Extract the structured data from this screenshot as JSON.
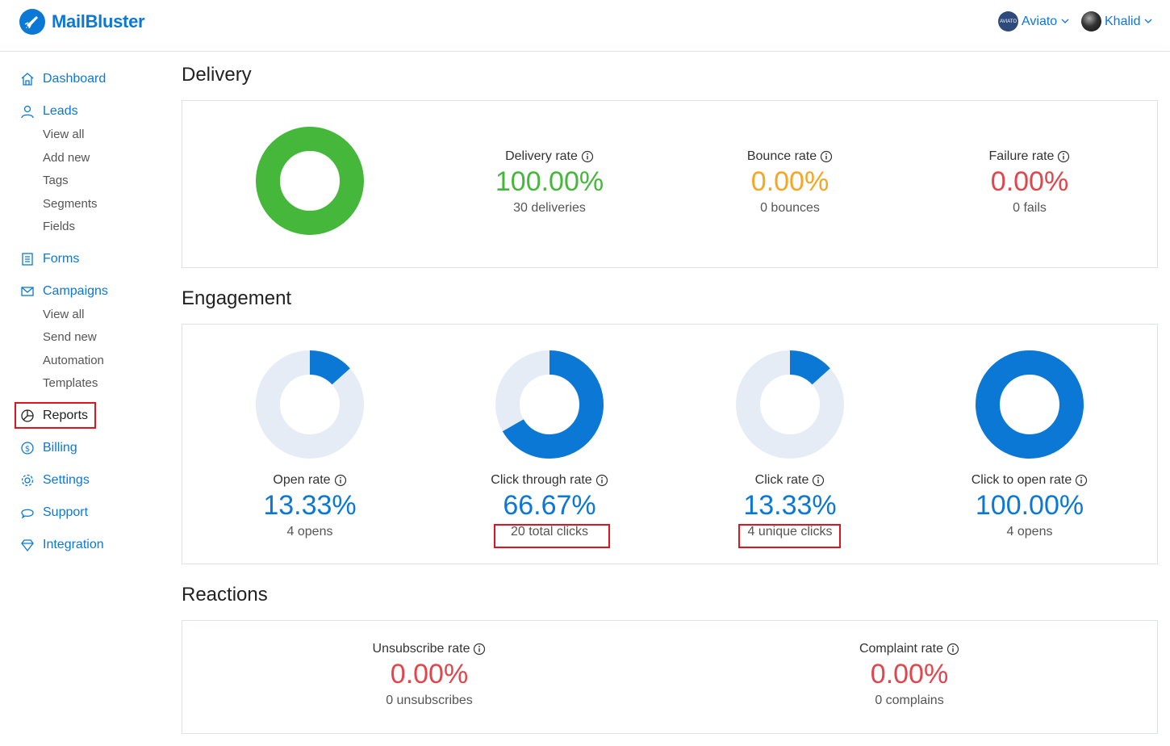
{
  "brand": {
    "name": "MailBluster"
  },
  "header": {
    "org": {
      "name": "Aviato",
      "avatar_text": "AVIATO"
    },
    "user": {
      "name": "Khalid"
    }
  },
  "sidebar": {
    "items": [
      {
        "label": "Dashboard",
        "icon": "home-icon"
      },
      {
        "label": "Leads",
        "icon": "user-icon",
        "children": [
          "View all",
          "Add new",
          "Tags",
          "Segments",
          "Fields"
        ]
      },
      {
        "label": "Forms",
        "icon": "form-icon"
      },
      {
        "label": "Campaigns",
        "icon": "envelope-icon",
        "children": [
          "View all",
          "Send new",
          "Automation",
          "Templates"
        ]
      },
      {
        "label": "Reports",
        "icon": "pie-chart-icon",
        "active": true
      },
      {
        "label": "Billing",
        "icon": "dollar-icon"
      },
      {
        "label": "Settings",
        "icon": "gear-icon"
      },
      {
        "label": "Support",
        "icon": "chat-icon"
      },
      {
        "label": "Integration",
        "icon": "diamond-icon"
      }
    ]
  },
  "delivery": {
    "title": "Delivery",
    "chart": {
      "delivered_fraction": 1.0,
      "color": "#45b83b"
    },
    "metrics": [
      {
        "label": "Delivery rate",
        "value": "100.00%",
        "sub": "30 deliveries",
        "color": "#45b83b"
      },
      {
        "label": "Bounce rate",
        "value": "0.00%",
        "sub": "0 bounces",
        "color": "#f5a623"
      },
      {
        "label": "Failure rate",
        "value": "0.00%",
        "sub": "0 fails",
        "color": "#e0464c"
      }
    ]
  },
  "engagement": {
    "title": "Engagement",
    "metrics": [
      {
        "label": "Open rate",
        "value": "13.33%",
        "sub": "4 opens",
        "fraction": 0.1333
      },
      {
        "label": "Click through rate",
        "value": "66.67%",
        "sub": "20 total clicks",
        "fraction": 0.6667
      },
      {
        "label": "Click rate",
        "value": "13.33%",
        "sub": "4 unique clicks",
        "fraction": 0.1333
      },
      {
        "label": "Click to open rate",
        "value": "100.00%",
        "sub": "4 opens",
        "fraction": 1.0
      }
    ],
    "colors": {
      "fill": "#0b78d6",
      "track": "#e6ecf6"
    }
  },
  "reactions": {
    "title": "Reactions",
    "metrics": [
      {
        "label": "Unsubscribe rate",
        "value": "0.00%",
        "sub": "0 unsubscribes"
      },
      {
        "label": "Complaint rate",
        "value": "0.00%",
        "sub": "0 complains"
      }
    ]
  }
}
